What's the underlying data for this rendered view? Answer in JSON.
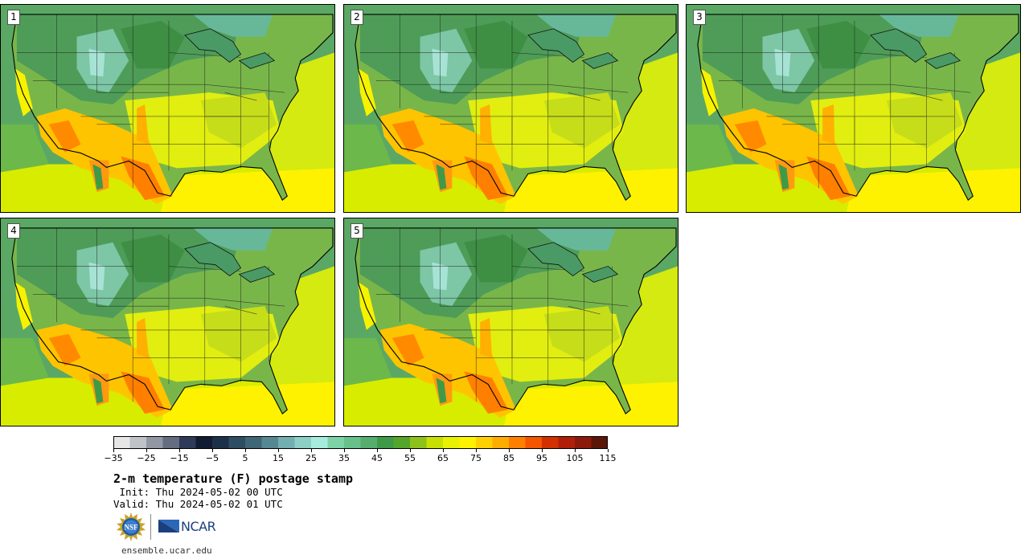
{
  "panels": [
    {
      "label": "1",
      "variant": 0
    },
    {
      "label": "2",
      "variant": 1
    },
    {
      "label": "3",
      "variant": 2
    },
    {
      "label": "4",
      "variant": 3
    },
    {
      "label": "5",
      "variant": 4
    }
  ],
  "colorbar": {
    "colors": [
      "#e6e6e6",
      "#bfc2c7",
      "#9298a3",
      "#646c80",
      "#2e3a57",
      "#111b32",
      "#1d3049",
      "#2f4d62",
      "#3f6677",
      "#568893",
      "#73aeb0",
      "#8ccfc4",
      "#a6ecdc",
      "#7dd3a8",
      "#68c08a",
      "#56ad6d",
      "#3f9a48",
      "#54a62a",
      "#8cc21a",
      "#c7e000",
      "#e9f000",
      "#fff200",
      "#ffd000",
      "#ffac00",
      "#ff8000",
      "#f45500",
      "#d33000",
      "#b01e0a",
      "#8c1a0c",
      "#5c1608"
    ],
    "tick_labels": [
      "−35",
      "−25",
      "−15",
      "−5",
      "5",
      "15",
      "25",
      "35",
      "45",
      "55",
      "65",
      "75",
      "85",
      "95",
      "105",
      "115"
    ]
  },
  "title": "2-m temperature (F) postage stamp",
  "init": " Init: Thu 2024-05-02 00 UTC",
  "valid": "Valid: Thu 2024-05-02 01 UTC",
  "logos": {
    "nsf": "NSF",
    "ncar": "NCAR"
  },
  "url": "ensemble.ucar.edu"
}
